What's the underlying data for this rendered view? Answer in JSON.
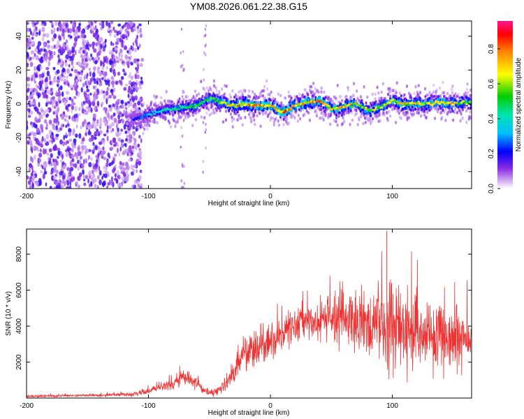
{
  "chart_data": [
    {
      "type": "heatmap",
      "title": "YM08.2026.061.22.38.G15",
      "xlabel": "Height of straight line (km)",
      "ylabel": "Frequency (Hz)",
      "xlim": [
        -200,
        165
      ],
      "ylim": [
        -50,
        49
      ],
      "xticks": [
        -200,
        -100,
        0,
        100
      ],
      "yticks": [
        -40,
        -20,
        0,
        20,
        40
      ],
      "colorbar": {
        "label": "Normalized spectral amplitude",
        "range": [
          0,
          0.96
        ],
        "ticks": [
          0.0,
          0.2,
          0.4,
          0.6,
          0.8
        ],
        "tick_labels": [
          "0.0",
          "0.2",
          "0.4",
          "0.6",
          "0.8"
        ]
      },
      "ridge": {
        "description": "dominant-frequency track",
        "x": [
          -110,
          -100,
          -90,
          -80,
          -70,
          -60,
          -50,
          -40,
          -30,
          -20,
          -10,
          0,
          10,
          20,
          30,
          40,
          50,
          60,
          70,
          80,
          90,
          100,
          110,
          120,
          130,
          140,
          150,
          160
        ],
        "y": [
          -9,
          -6,
          -4,
          -3,
          -2,
          -1,
          3,
          1,
          -1,
          0,
          -1,
          -1,
          -5,
          -1,
          1,
          2,
          -3,
          -2,
          0,
          -4,
          -2,
          2,
          0,
          0,
          0,
          1,
          0,
          1
        ],
        "peak_amplitude": [
          0.25,
          0.4,
          0.45,
          0.55,
          0.55,
          0.6,
          0.6,
          0.7,
          0.85,
          0.9,
          0.9,
          0.9,
          0.95,
          0.85,
          0.85,
          0.9,
          0.8,
          0.85,
          0.8,
          0.7,
          0.75,
          0.75,
          0.8,
          0.75,
          0.75,
          0.8,
          0.8,
          0.7
        ]
      }
    },
    {
      "type": "line",
      "xlabel": "Height of straight line (km)",
      "ylabel": "SNR (10 * v/v)",
      "xlim": [
        -200,
        165
      ],
      "ylim": [
        0,
        9400
      ],
      "xticks": [
        -200,
        -100,
        0,
        100
      ],
      "yticks": [
        2000,
        4000,
        6000,
        8000
      ],
      "series": [
        {
          "name": "SNR",
          "color": "#f03232",
          "x": [
            -200,
            -180,
            -160,
            -140,
            -120,
            -110,
            -100,
            -90,
            -80,
            -75,
            -70,
            -65,
            -60,
            -55,
            -50,
            -45,
            -40,
            -35,
            -30,
            -25,
            -20,
            -15,
            -10,
            -5,
            0,
            10,
            20,
            30,
            40,
            50,
            60,
            70,
            80,
            90,
            100,
            110,
            120,
            130,
            140,
            150,
            160,
            165
          ],
          "values": [
            100,
            120,
            130,
            150,
            200,
            250,
            400,
            600,
            800,
            1000,
            1050,
            1000,
            900,
            400,
            300,
            350,
            600,
            900,
            1600,
            2000,
            2400,
            2600,
            2800,
            3000,
            3100,
            3500,
            4000,
            4300,
            4300,
            4300,
            4200,
            4000,
            4200,
            4300,
            4100,
            3800,
            3600,
            3500,
            3500,
            3400,
            3200,
            3300
          ],
          "spread": [
            80,
            80,
            80,
            80,
            100,
            150,
            200,
            250,
            400,
            450,
            450,
            450,
            400,
            250,
            200,
            250,
            400,
            600,
            800,
            900,
            1000,
            1100,
            1100,
            1100,
            1100,
            1200,
            1200,
            1300,
            1300,
            1400,
            1600,
            1800,
            2200,
            2400,
            2600,
            2600,
            2400,
            2200,
            2000,
            1800,
            1400,
            1200
          ]
        }
      ]
    }
  ]
}
